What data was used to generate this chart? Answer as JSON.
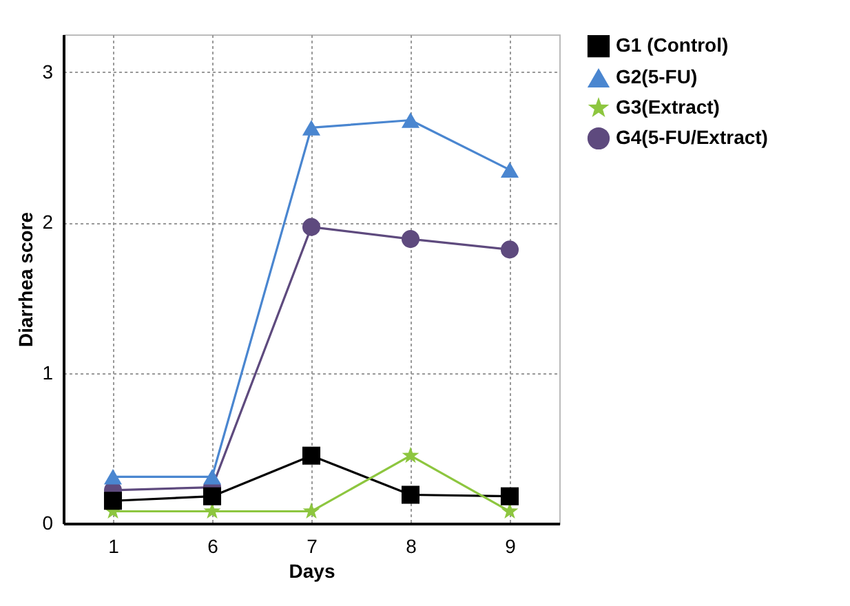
{
  "chart_data": {
    "type": "line",
    "xlabel": "Days",
    "ylabel": "Diarrhea score",
    "categories": [
      "1",
      "6",
      "7",
      "8",
      "9"
    ],
    "series": [
      {
        "name": "G1 (Control)",
        "color": "#000000",
        "marker": "square",
        "values": [
          0.15,
          0.18,
          0.45,
          0.19,
          0.18
        ]
      },
      {
        "name": "G2(5-FU)",
        "color": "#4a86d0",
        "marker": "triangle",
        "values": [
          0.31,
          0.31,
          2.63,
          2.68,
          2.35
        ]
      },
      {
        "name": "G3(Extract)",
        "color": "#8dc63f",
        "marker": "star",
        "values": [
          0.08,
          0.08,
          0.08,
          0.45,
          0.08
        ]
      },
      {
        "name": "G4(5-FU/Extract)",
        "color": "#5e4a7e",
        "marker": "circle",
        "values": [
          0.22,
          0.24,
          1.97,
          1.89,
          1.82
        ]
      }
    ],
    "ylim": [
      0,
      3.25
    ],
    "yticks": [
      0,
      1,
      2,
      3
    ],
    "grid": true,
    "legend": "top right",
    "line_style": "solid"
  }
}
